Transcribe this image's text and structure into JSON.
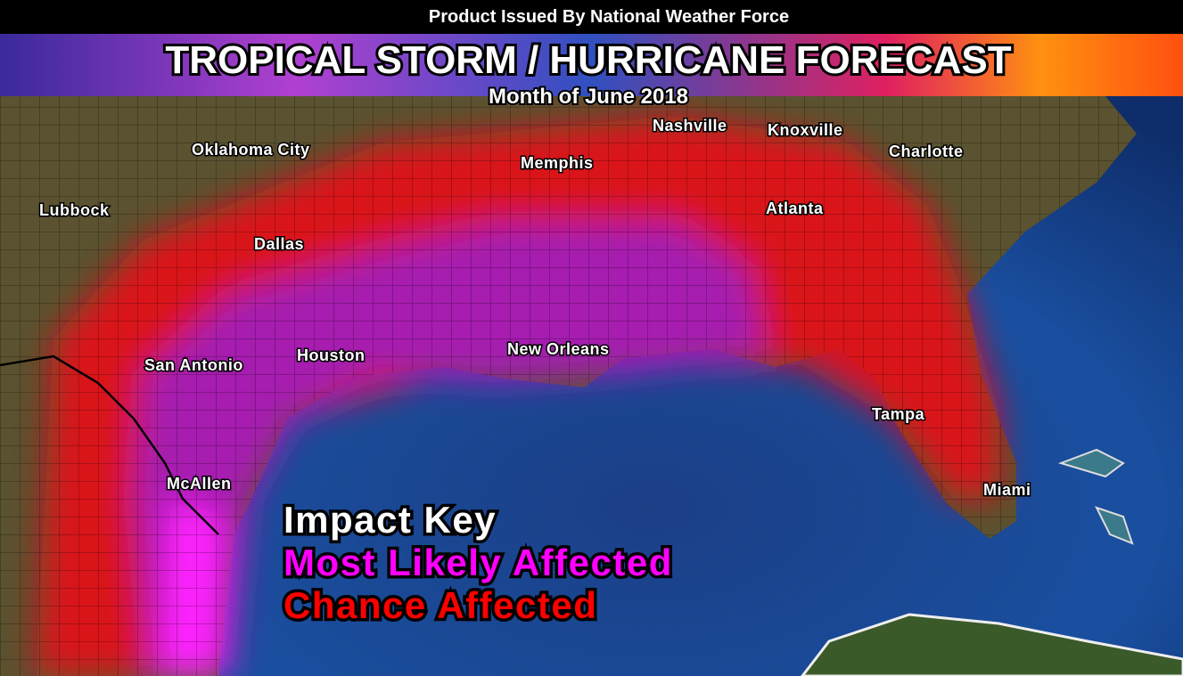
{
  "header": {
    "issued_by": "Product Issued By National Weather Force",
    "title": "TROPICAL STORM / HURRICANE FORECAST",
    "subtitle": "Month of June 2018"
  },
  "cities": [
    "Lubbock",
    "Oklahoma City",
    "Dallas",
    "San Antonio",
    "Houston",
    "McAllen",
    "Memphis",
    "Nashville",
    "Knoxville",
    "Charlotte",
    "Atlanta",
    "New Orleans",
    "Tampa",
    "Miami"
  ],
  "key": {
    "title": "Impact Key",
    "items": [
      {
        "label": "Most Likely Affected",
        "color": "#ff00ff"
      },
      {
        "label": "Chance Affected",
        "color": "#ff0000"
      }
    ]
  }
}
